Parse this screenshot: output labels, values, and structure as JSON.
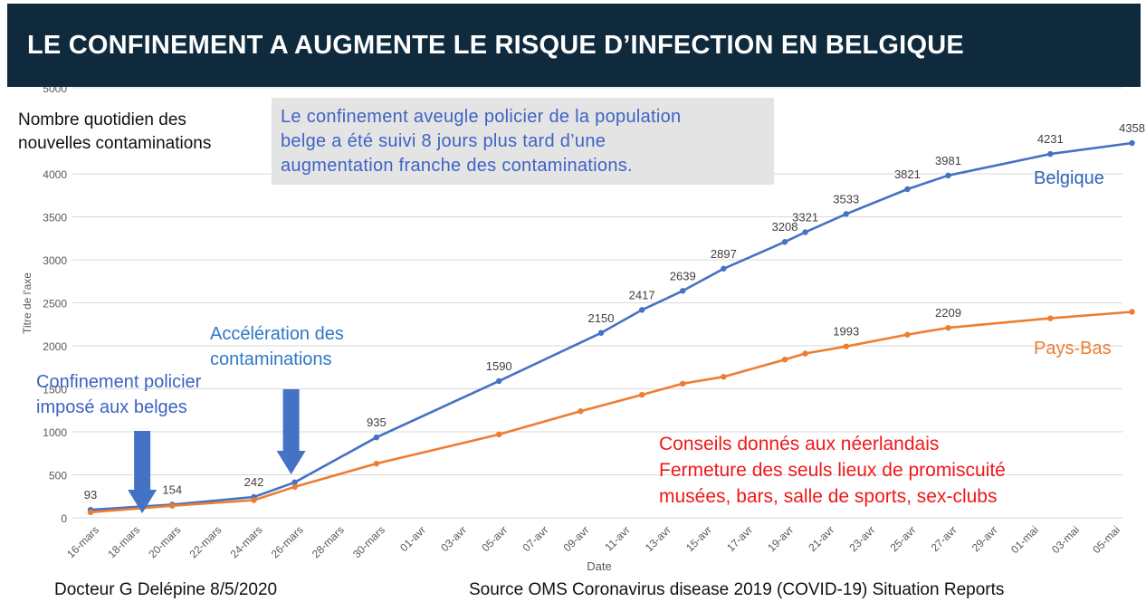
{
  "banner": {
    "title": "LE CONFINEMENT A AUGMENTE LE RISQUE D’INFECTION EN BELGIQUE"
  },
  "y_header": {
    "line1": "Nombre quotidien des",
    "line2": "nouvelles contaminations"
  },
  "infobox": {
    "line1": "Le confinement aveugle policier de la population",
    "line2": "belge a été suivi 8 jours plus tard d’une",
    "line3": "augmentation franche des contaminations."
  },
  "annotations": {
    "lockdown_line1": "Confinement policier",
    "lockdown_line2": "imposé aux belges",
    "accel_line1": "Accélération des",
    "accel_line2": "contaminations",
    "nl_line1": "Conseils donnés aux néerlandais",
    "nl_line2": "Fermeture des  seuls lieux de promiscuité",
    "nl_line3": "musées, bars, salle de sports, sex-clubs"
  },
  "footer": {
    "left": "Docteur G Delépine 8/5/2020",
    "right": "Source OMS Coronavirus disease 2019 (COVID-19) Situation Reports"
  },
  "colors": {
    "banner": "#0e2a3c",
    "belgique": "#4472c4",
    "pays_bas": "#ed7d31",
    "arrow": "#4472c4",
    "grid": "#d9d9d9",
    "infobox_bg": "#e4e4e4",
    "nl_text": "#f01818"
  },
  "chart_data": {
    "type": "line",
    "xlabel": "Date",
    "ylabel": "Titre de l'axe",
    "ylim": [
      0,
      5000
    ],
    "y_ticks": [
      0,
      500,
      1000,
      1500,
      2000,
      2500,
      3000,
      3500,
      4000,
      5000
    ],
    "x_ticks": [
      "16-mars",
      "18-mars",
      "20-mars",
      "22-mars",
      "24-mars",
      "26-mars",
      "28-mars",
      "30-mars",
      "01-avr",
      "03-avr",
      "05-avr",
      "07-avr",
      "09-avr",
      "11-avr",
      "13-avr",
      "15-avr",
      "17-avr",
      "19-avr",
      "21-avr",
      "23-avr",
      "25-avr",
      "27-avr",
      "29-avr",
      "01-mai",
      "03-mai",
      "05-mai"
    ],
    "grid": true,
    "series": [
      {
        "name": "Belgique",
        "x": [
          "16-mars",
          "20-mars",
          "24-mars",
          "26-mars",
          "30-mars",
          "05-avr",
          "10-avr",
          "12-avr",
          "14-avr",
          "16-avr",
          "19-avr",
          "20-avr",
          "22-avr",
          "25-avr",
          "27-avr",
          "02-mai",
          "06-mai"
        ],
        "values": [
          93,
          154,
          242,
          413,
          935,
          1590,
          2150,
          2417,
          2639,
          2897,
          3208,
          3321,
          3533,
          3821,
          3981,
          4231,
          4358
        ],
        "labels": [
          "93",
          "154",
          "242",
          "",
          "935",
          "1590",
          "2150",
          "2417",
          "2639",
          "2897",
          "3208",
          "3321",
          "3533",
          "3821",
          "3981",
          "4231",
          "4358"
        ]
      },
      {
        "name": "Pays-Bas",
        "x": [
          "16-mars",
          "20-mars",
          "24-mars",
          "26-mars",
          "30-mars",
          "05-avr",
          "09-avr",
          "12-avr",
          "14-avr",
          "16-avr",
          "19-avr",
          "20-avr",
          "22-avr",
          "25-avr",
          "27-avr",
          "02-mai",
          "06-mai"
        ],
        "values": [
          65,
          140,
          205,
          360,
          630,
          970,
          1240,
          1430,
          1560,
          1640,
          1840,
          1910,
          1993,
          2130,
          2209,
          2320,
          2395
        ],
        "labels": [
          "",
          "",
          "",
          "",
          "",
          "",
          "",
          "",
          "",
          "",
          "",
          "",
          "1993",
          "",
          "2209",
          "",
          ""
        ]
      }
    ],
    "arrows": [
      {
        "at": "18-mars",
        "meaning": "lockdown"
      },
      {
        "at": "26-mars",
        "meaning": "acceleration"
      }
    ]
  }
}
